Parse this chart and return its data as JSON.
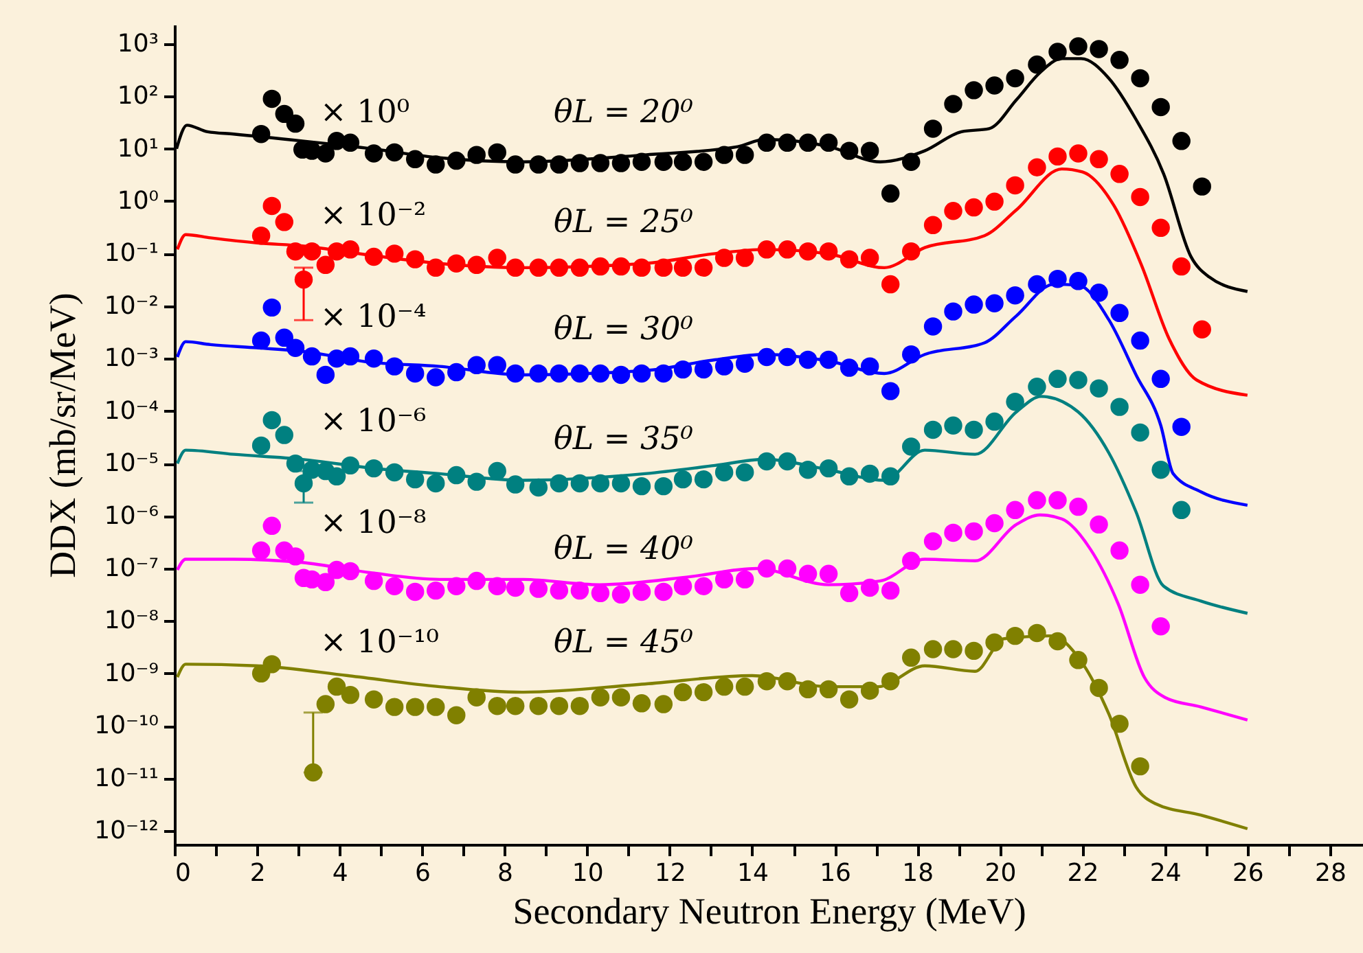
{
  "chart_data": {
    "type": "scatter",
    "xlabel": "Secondary Neutron Energy (MeV)",
    "ylabel": "DDX (mb/sr/MeV)",
    "log": "y",
    "grid": false,
    "marker": "circle",
    "line_style": "solid",
    "xlim": [
      0,
      28.8
    ],
    "xticks": [
      0,
      {
        "value": 1,
        "label": null
      },
      2,
      {
        "value": 3,
        "label": null
      },
      4,
      {
        "value": 5,
        "label": null
      },
      6,
      {
        "value": 7,
        "label": null
      },
      8,
      {
        "value": 9,
        "label": null
      },
      10,
      {
        "value": 11,
        "label": null
      },
      12,
      {
        "value": 13,
        "label": null
      },
      14,
      {
        "value": 15,
        "label": null
      },
      16,
      {
        "value": 17,
        "label": null
      },
      18,
      {
        "value": 19,
        "label": null
      },
      20,
      {
        "value": 21,
        "label": null
      },
      22,
      {
        "value": 23,
        "label": null
      },
      24,
      {
        "value": 25,
        "label": null
      },
      26,
      {
        "value": 27,
        "label": null
      },
      28
    ],
    "ylim": [
      5.5e-13,
      2300
    ],
    "yticks": [
      {
        "value": 1e-12,
        "label": "10⁻¹²"
      },
      {
        "value": 1e-11,
        "label": "10⁻¹¹"
      },
      {
        "value": 1e-10,
        "label": "10⁻¹⁰"
      },
      {
        "value": 1e-09,
        "label": "10⁻⁹"
      },
      {
        "value": 1e-08,
        "label": "10⁻⁸"
      },
      {
        "value": 1e-07,
        "label": "10⁻⁷"
      },
      {
        "value": 1e-06,
        "label": "10⁻⁶"
      },
      {
        "value": 1e-05,
        "label": "10⁻⁵"
      },
      {
        "value": 0.0001,
        "label": "10⁻⁴"
      },
      {
        "value": 0.001,
        "label": "10⁻³"
      },
      {
        "value": 0.01,
        "label": "10⁻²"
      },
      {
        "value": 0.1,
        "label": "10⁻¹"
      },
      {
        "value": 1,
        "label": "10⁰"
      },
      {
        "value": 10,
        "label": "10¹"
      },
      {
        "value": 100,
        "label": "10²"
      },
      {
        "value": 1000,
        "label": "10³"
      }
    ],
    "annotations": [
      "× 10⁰",
      "θL = 20⁰",
      "× 10⁻²",
      "θL = 25⁰",
      "× 10⁻⁴",
      "θL = 30⁰",
      "× 10⁻⁶",
      "θL = 35⁰",
      "× 10⁻⁸",
      "θL = 40⁰",
      "× 10⁻¹⁰",
      "θL = 45⁰"
    ],
    "series": [
      {
        "color": "#000000",
        "x": [
          2.1,
          2.36,
          2.66,
          2.93,
          3.1,
          3.33,
          3.66,
          3.93,
          4.26,
          4.83,
          5.33,
          5.83,
          6.33,
          6.83,
          7.32,
          7.82,
          8.26,
          8.82,
          9.32,
          9.82,
          10.32,
          10.82,
          11.32,
          11.85,
          12.32,
          12.82,
          13.32,
          13.82,
          14.35,
          14.85,
          15.35,
          15.85,
          16.35,
          16.85,
          17.35,
          17.85,
          18.38,
          18.87,
          19.37,
          19.87,
          20.37,
          20.9,
          21.4,
          21.9,
          22.4,
          22.9,
          23.4,
          23.9,
          24.4,
          24.9
        ],
        "values": [
          19,
          89,
          46,
          30,
          9.6,
          9.1,
          8.1,
          14,
          13,
          8.1,
          8.5,
          6.3,
          5.0,
          5.9,
          7.6,
          8.5,
          5.0,
          5.0,
          5.0,
          5.3,
          5.3,
          5.3,
          5.6,
          5.6,
          5.6,
          5.6,
          7.6,
          7.6,
          13,
          13,
          13,
          13,
          9.1,
          9.1,
          1.4,
          5.6,
          24,
          71,
          130,
          160,
          220,
          400,
          700,
          890,
          790,
          490,
          220,
          62,
          14,
          1.9
        ]
      },
      {
        "color": "#ff0000",
        "x": [
          2.1,
          2.36,
          2.66,
          2.93,
          3.13,
          3.33,
          3.66,
          3.93,
          4.26,
          4.83,
          5.33,
          5.83,
          6.33,
          6.83,
          7.32,
          7.82,
          8.26,
          8.82,
          9.32,
          9.82,
          10.32,
          10.82,
          11.32,
          11.85,
          12.32,
          12.82,
          13.32,
          13.82,
          14.35,
          14.85,
          15.35,
          15.85,
          16.35,
          16.85,
          17.35,
          17.85,
          18.38,
          18.87,
          19.37,
          19.87,
          20.37,
          20.9,
          21.4,
          21.9,
          22.4,
          22.9,
          23.4,
          23.9,
          24.4,
          24.9
        ],
        "values": [
          0.22,
          0.81,
          0.4,
          0.11,
          0.032,
          0.11,
          0.061,
          0.11,
          0.12,
          0.087,
          0.1,
          0.078,
          0.054,
          0.065,
          0.061,
          0.083,
          0.054,
          0.054,
          0.054,
          0.054,
          0.057,
          0.057,
          0.054,
          0.054,
          0.054,
          0.054,
          0.083,
          0.083,
          0.12,
          0.12,
          0.11,
          0.11,
          0.078,
          0.083,
          0.026,
          0.11,
          0.35,
          0.65,
          0.76,
          0.98,
          2.0,
          4.4,
          7.1,
          8.1,
          6.3,
          3.3,
          1.2,
          0.31,
          0.057,
          0.0036
        ],
        "errors": [
          null,
          null,
          null,
          null,
          [
            0.0054,
            0.054
          ],
          null,
          null,
          null,
          null,
          null,
          null,
          null,
          null,
          null,
          null,
          null,
          null,
          null,
          null,
          null,
          null,
          null,
          null,
          null,
          null,
          null,
          null,
          null,
          null,
          null,
          null,
          null,
          null,
          null,
          null,
          null,
          null,
          null,
          null,
          null,
          null,
          null,
          null,
          null,
          null,
          null,
          null,
          null,
          null,
          null
        ]
      },
      {
        "color": "#0000ff",
        "x": [
          2.1,
          2.36,
          2.66,
          2.93,
          3.33,
          3.66,
          3.93,
          4.26,
          4.83,
          5.33,
          5.83,
          6.33,
          6.83,
          7.32,
          7.82,
          8.26,
          8.82,
          9.32,
          9.82,
          10.32,
          10.82,
          11.32,
          11.85,
          12.32,
          12.82,
          13.32,
          13.82,
          14.35,
          14.85,
          15.35,
          15.85,
          16.35,
          16.85,
          17.35,
          17.85,
          18.38,
          18.87,
          19.37,
          19.87,
          20.37,
          20.9,
          21.4,
          21.9,
          22.4,
          22.9,
          23.4,
          23.9,
          24.4
        ],
        "values": [
          0.0022,
          0.0094,
          0.0025,
          0.0016,
          0.0011,
          0.00049,
          0.001,
          0.0011,
          0.001,
          0.00071,
          0.00052,
          0.00044,
          0.00055,
          0.00075,
          0.00075,
          0.00052,
          0.00052,
          0.00052,
          0.00052,
          0.00052,
          0.00049,
          0.00052,
          0.00052,
          0.00062,
          0.00062,
          0.00071,
          0.0008,
          0.00107,
          0.00107,
          0.00095,
          0.00095,
          0.00067,
          0.00071,
          0.00024,
          0.0012,
          0.0041,
          0.0079,
          0.0107,
          0.0113,
          0.016,
          0.026,
          0.033,
          0.03,
          0.018,
          0.0074,
          0.0022,
          0.00041,
          5e-05
        ]
      },
      {
        "color": "#008080",
        "x": [
          2.1,
          2.36,
          2.66,
          2.93,
          3.13,
          3.33,
          3.66,
          3.93,
          4.26,
          4.83,
          5.33,
          5.83,
          6.33,
          6.83,
          7.32,
          7.82,
          8.26,
          8.82,
          9.32,
          9.82,
          10.32,
          10.82,
          11.32,
          11.85,
          12.32,
          12.82,
          13.32,
          13.82,
          14.35,
          14.85,
          15.35,
          15.85,
          16.35,
          16.85,
          17.35,
          17.85,
          18.38,
          18.87,
          19.37,
          19.87,
          20.37,
          20.9,
          21.4,
          21.9,
          22.4,
          22.9,
          23.4,
          23.9,
          24.4
        ],
        "values": [
          2.2e-05,
          6.7e-05,
          3.5e-05,
          1e-05,
          4.2e-06,
          7.6e-06,
          7.2e-06,
          5.7e-06,
          9.2e-06,
          8.1e-06,
          6.8e-06,
          5e-06,
          4.2e-06,
          6e-06,
          4.5e-06,
          7.2e-06,
          4e-06,
          3.5e-06,
          4.2e-06,
          4.2e-06,
          4.2e-06,
          4.2e-06,
          3.7e-06,
          3.7e-06,
          5e-06,
          5e-06,
          6.8e-06,
          6.8e-06,
          1.1e-05,
          1.1e-05,
          7.6e-06,
          8.1e-06,
          5.7e-06,
          6.4e-06,
          5.7e-06,
          2.1e-05,
          4.4e-05,
          5.3e-05,
          4.4e-05,
          6.3e-05,
          0.00015,
          0.00029,
          0.00041,
          0.00039,
          0.00027,
          0.00012,
          3.9e-05,
          7.6e-06,
          1.3e-06
        ],
        "errors": [
          null,
          null,
          null,
          null,
          [
            1.8e-06,
            7.2e-06
          ],
          null,
          null,
          null,
          null,
          null,
          null,
          null,
          null,
          null,
          null,
          null,
          null,
          null,
          null,
          null,
          null,
          null,
          null,
          null,
          null,
          null,
          null,
          null,
          null,
          null,
          null,
          null,
          null,
          null,
          null,
          null,
          null,
          null,
          null,
          null,
          null,
          null,
          null,
          null,
          null,
          null,
          null,
          null,
          null
        ]
      },
      {
        "color": "#ff00ff",
        "x": [
          2.1,
          2.36,
          2.66,
          2.93,
          3.13,
          3.33,
          3.66,
          3.93,
          4.26,
          4.83,
          5.33,
          5.83,
          6.33,
          6.83,
          7.32,
          7.82,
          8.26,
          8.82,
          9.32,
          9.82,
          10.32,
          10.82,
          11.32,
          11.85,
          12.32,
          12.82,
          13.32,
          13.82,
          14.35,
          14.85,
          15.35,
          15.85,
          16.35,
          16.85,
          17.35,
          17.85,
          18.38,
          18.87,
          19.37,
          19.87,
          20.37,
          20.9,
          21.4,
          21.9,
          22.4,
          22.9,
          23.4,
          23.9
        ],
        "values": [
          2.2e-07,
          6.5e-07,
          2.2e-07,
          1.7e-07,
          6.6e-08,
          6.2e-08,
          5.5e-08,
          9.4e-08,
          8.9e-08,
          5.8e-08,
          4.6e-08,
          3.6e-08,
          3.8e-08,
          4.6e-08,
          5.8e-08,
          4.6e-08,
          4.3e-08,
          4.1e-08,
          3.8e-08,
          3.8e-08,
          3.4e-08,
          3.2e-08,
          3.6e-08,
          3.6e-08,
          4.6e-08,
          4.6e-08,
          6.2e-08,
          6.2e-08,
          1e-07,
          1e-07,
          7.9e-08,
          7.9e-08,
          3.4e-08,
          4.3e-08,
          3.8e-08,
          1.4e-07,
          3.3e-07,
          4.8e-07,
          5.1e-07,
          7.3e-07,
          1.3e-06,
          2e-06,
          2e-06,
          1.5e-06,
          6.9e-07,
          2.2e-07,
          4.9e-08,
          7.9e-09
        ]
      },
      {
        "color": "#808000",
        "x": [
          2.1,
          2.36,
          3.36,
          3.66,
          3.93,
          4.26,
          4.83,
          5.33,
          5.83,
          6.33,
          6.83,
          7.32,
          7.82,
          8.26,
          8.82,
          9.32,
          9.82,
          10.32,
          10.82,
          11.32,
          11.85,
          12.32,
          12.82,
          13.32,
          13.82,
          14.35,
          14.85,
          15.35,
          15.85,
          16.35,
          16.85,
          17.35,
          17.85,
          18.38,
          18.87,
          19.37,
          19.87,
          20.37,
          20.9,
          21.4,
          21.9,
          22.4,
          22.9,
          23.4
        ],
        "values": [
          1e-09,
          1.5e-09,
          1.3e-11,
          2.6e-10,
          5.6e-10,
          3.9e-10,
          3.2e-10,
          2.3e-10,
          2.3e-10,
          2.3e-10,
          1.6e-10,
          3.5e-10,
          2.4e-10,
          2.4e-10,
          2.4e-10,
          2.4e-10,
          2.4e-10,
          3.5e-10,
          3.5e-10,
          2.7e-10,
          2.6e-10,
          4.4e-10,
          4.4e-10,
          5.6e-10,
          5.6e-10,
          7.1e-10,
          7.1e-10,
          5e-10,
          5e-10,
          3.2e-10,
          4.7e-10,
          7.1e-10,
          2e-09,
          2.9e-09,
          2.9e-09,
          2.7e-09,
          3.9e-09,
          5.2e-09,
          5.9e-09,
          4.1e-09,
          1.8e-09,
          5.3e-10,
          1.1e-10,
          1.7e-11
        ],
        "errors": [
          null,
          null,
          [
            1.3e-11,
            1.8e-10
          ],
          null,
          null,
          null,
          null,
          null,
          null,
          null,
          null,
          null,
          null,
          null,
          null,
          null,
          null,
          null,
          null,
          null,
          null,
          null,
          null,
          null,
          null,
          null,
          null,
          null,
          null,
          null,
          null,
          null,
          null,
          null,
          null,
          null,
          null,
          null,
          null,
          null,
          null,
          null,
          null,
          null
        ]
      },
      {
        "type": "line",
        "marker": "none",
        "color": "#000000",
        "x": [
          0.05,
          0.3,
          0.8,
          1.43,
          3.1,
          4.76,
          6.42,
          8.42,
          11.4,
          13.65,
          14.3,
          15.85,
          17.1,
          18.18,
          19.07,
          19.74,
          20.4,
          20.97,
          21.5,
          21.97,
          22.64,
          23.3,
          23.97,
          24.63,
          25.07,
          26.0
        ],
        "values": [
          10,
          28,
          21,
          19,
          14,
          10,
          6.7,
          5.6,
          7.6,
          10.9,
          15,
          11,
          5.6,
          9.1,
          21,
          24,
          85,
          280,
          520,
          520,
          220,
          36,
          3.3,
          0.088,
          0.036,
          0.019
        ]
      },
      {
        "type": "line",
        "marker": "none",
        "color": "#ff0000",
        "x": [
          0.07,
          0.27,
          0.87,
          2.0,
          3.1,
          4.76,
          6.42,
          8.42,
          11.4,
          13.1,
          14.3,
          15.85,
          17.2,
          18.18,
          19.63,
          20.4,
          21.5,
          22.0,
          22.77,
          23.43,
          24.1,
          24.77,
          26.0
        ],
        "values": [
          0.12,
          0.23,
          0.2,
          0.16,
          0.14,
          0.093,
          0.065,
          0.054,
          0.065,
          0.1,
          0.12,
          0.099,
          0.054,
          0.13,
          0.22,
          0.68,
          4.1,
          3.6,
          0.81,
          0.061,
          0.0024,
          0.00039,
          0.0002
        ]
      },
      {
        "type": "line",
        "marker": "none",
        "color": "#0000ff",
        "x": [
          0.07,
          0.27,
          0.87,
          2.0,
          3.1,
          4.76,
          6.42,
          8.42,
          11.4,
          13.1,
          14.3,
          15.85,
          17.2,
          18.18,
          19.63,
          20.4,
          21.3,
          21.9,
          22.64,
          23.3,
          23.9,
          24.2,
          24.87,
          26.0
        ],
        "values": [
          0.00107,
          0.0021,
          0.00185,
          0.0016,
          0.00137,
          0.00085,
          0.00071,
          0.00049,
          0.00059,
          0.00095,
          0.0012,
          0.0009,
          0.00052,
          0.0012,
          0.002,
          0.0065,
          0.026,
          0.025,
          0.0055,
          0.00049,
          5.3e-05,
          6.4e-06,
          2.9e-06,
          1.6e-06
        ]
      },
      {
        "type": "line",
        "marker": "none",
        "color": "#008080",
        "x": [
          0.07,
          0.27,
          1.43,
          3.1,
          4.76,
          6.42,
          8.42,
          11.4,
          13.1,
          14.3,
          15.85,
          17.2,
          18.18,
          19.4,
          20.4,
          21.0,
          21.9,
          22.64,
          23.3,
          23.97,
          24.87,
          26.0
        ],
        "values": [
          1e-05,
          1.8e-05,
          1.5e-05,
          1.2e-05,
          8.2e-06,
          6.4e-06,
          4.8e-06,
          6.4e-06,
          9.2e-06,
          1.2e-05,
          7.6e-06,
          4.8e-06,
          1.8e-05,
          1.5e-05,
          9.6e-05,
          0.00019,
          9.6e-05,
          1.6e-05,
          1.2e-06,
          4.6e-08,
          2.4e-08,
          1.4e-08
        ]
      },
      {
        "type": "line",
        "marker": "none",
        "color": "#ff00ff",
        "x": [
          0.07,
          0.27,
          1.43,
          3.1,
          4.76,
          6.42,
          8.42,
          10.3,
          12.5,
          14.1,
          15.85,
          17.1,
          18.18,
          19.4,
          20.4,
          20.97,
          21.5,
          22.2,
          22.87,
          23.5,
          24.0,
          24.87,
          26.0
        ],
        "values": [
          9.4e-08,
          1.5e-07,
          1.5e-07,
          1.3e-07,
          8.3e-08,
          6.2e-08,
          6.2e-08,
          4.9e-08,
          7e-08,
          1e-07,
          4.9e-08,
          5.8e-08,
          1.5e-07,
          1.4e-07,
          6.9e-07,
          1.05e-06,
          8.8e-07,
          2.3e-07,
          2.1e-08,
          8.5e-10,
          3.5e-10,
          2.3e-10,
          1.3e-10
        ]
      },
      {
        "type": "line",
        "marker": "none",
        "color": "#808000",
        "x": [
          0.07,
          0.27,
          2.0,
          4.2,
          6.42,
          8.42,
          11.4,
          14.0,
          15.85,
          17.05,
          18.18,
          19.4,
          20.1,
          21.25,
          21.97,
          22.64,
          23.3,
          23.77,
          24.87,
          26.0
        ],
        "values": [
          8.5e-10,
          1.5e-09,
          1.4e-09,
          9.1e-10,
          5.6e-10,
          4.4e-10,
          6.3e-10,
          9.1e-10,
          5.6e-10,
          5.6e-10,
          1.4e-09,
          1.1e-09,
          4.6e-09,
          5.2e-09,
          1.7e-09,
          1.7e-10,
          6.9e-12,
          3.3e-12,
          2e-12,
          1.1e-12
        ]
      }
    ]
  }
}
